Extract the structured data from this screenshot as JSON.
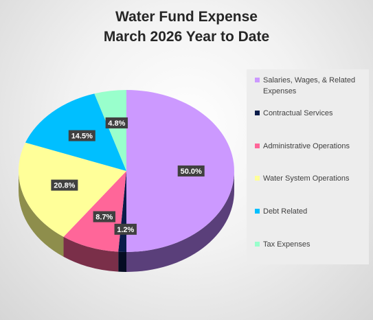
{
  "chart_data": {
    "type": "pie",
    "title": [
      "Water Fund Expense",
      "March 2026 Year to Date"
    ],
    "slices": [
      {
        "label": "Salaries, Wages, & Related Expenses",
        "value": 50.0,
        "display": "50.0%",
        "color": "#CC99FF",
        "side": "#5A3F7A"
      },
      {
        "label": "Contractual Services",
        "value": 1.2,
        "display": "1.2%",
        "color": "#0B1C4A",
        "side": "#050C22"
      },
      {
        "label": "Administrative Operations",
        "value": 8.7,
        "display": "8.7%",
        "color": "#FF6699",
        "side": "#7A2F49"
      },
      {
        "label": "Water System Operations",
        "value": 20.8,
        "display": "20.8%",
        "color": "#FFFF99",
        "side": "#8E8E4C"
      },
      {
        "label": "Debt Related",
        "value": 14.5,
        "display": "14.5%",
        "color": "#00BFFF",
        "side": "#006080"
      },
      {
        "label": "Tax Expenses",
        "value": 4.8,
        "display": "4.8%",
        "color": "#99FFCC",
        "side": "#4C8066"
      }
    ],
    "legend_position": "right"
  }
}
